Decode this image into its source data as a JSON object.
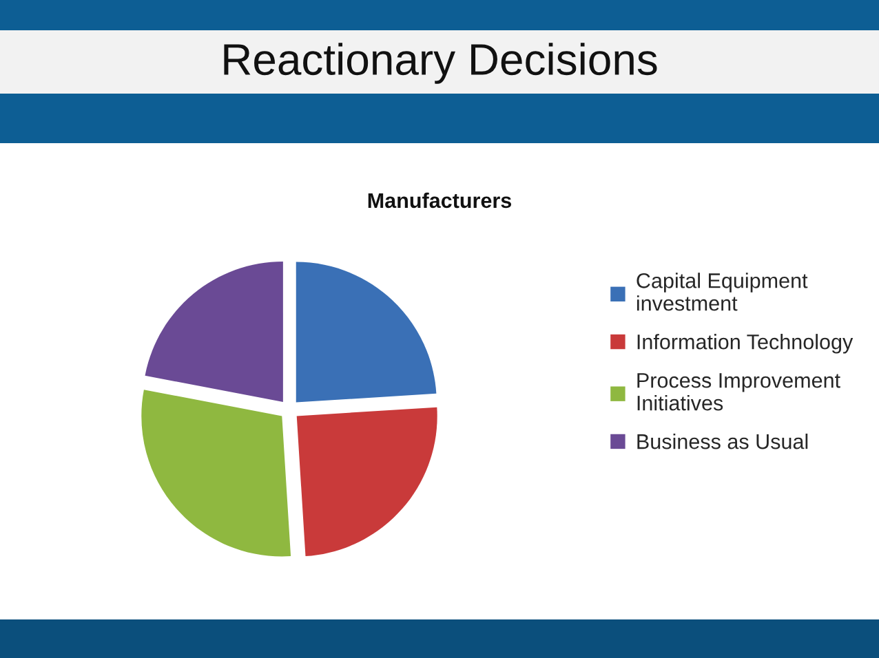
{
  "chart_data": {
    "type": "pie",
    "title": "Reactionary Decisions",
    "subtitle": "Manufacturers",
    "categories": [
      "Capital Equipment\ninvestment",
      "Information Technology",
      "Process Improvement\nInitiatives",
      "Business as Usual"
    ],
    "values": [
      24,
      25,
      29,
      22
    ],
    "colors": [
      "#3a70b6",
      "#c93a3a",
      "#8fb840",
      "#6a4a95"
    ],
    "legend": "right"
  }
}
